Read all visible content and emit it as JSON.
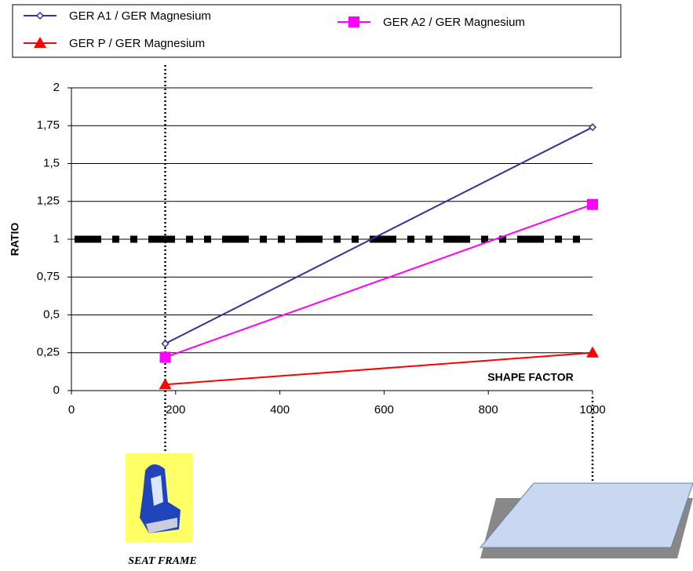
{
  "chart_data": {
    "type": "line",
    "x_label": "SHAPE FACTOR",
    "y_label": "RATIO",
    "caption": "SEAT FRAME",
    "xlim": [
      0,
      1000
    ],
    "xticks": [
      0,
      200,
      400,
      600,
      800,
      1000
    ],
    "ylim": [
      0,
      2
    ],
    "yticks": [
      0,
      {
        "value": 0.25,
        "label": "0,25"
      },
      {
        "value": 0.5,
        "label": "0,5"
      },
      {
        "value": 0.75,
        "label": "0,75"
      },
      1,
      {
        "value": 1.25,
        "label": "1,25"
      },
      {
        "value": 1.5,
        "label": "1,5"
      },
      {
        "value": 1.75,
        "label": "1,75"
      },
      2
    ],
    "grid": true,
    "reference_line": 1,
    "vertical_markers": [
      180,
      1000
    ],
    "series": [
      {
        "name": "GER A1 / GER Magnesium",
        "color": "#333399",
        "marker": "diamond",
        "x": [
          180,
          1000
        ],
        "values": [
          0.31,
          1.74
        ]
      },
      {
        "name": "GER A2 / GER Magnesium",
        "color": "#ff00ff",
        "marker": "square",
        "x": [
          180,
          1000
        ],
        "values": [
          0.22,
          1.23
        ]
      },
      {
        "name": "GER P / GER Magnesium",
        "color": "#ff0000",
        "marker": "triangle",
        "x": [
          180,
          1000
        ],
        "values": [
          0.04,
          0.25
        ]
      }
    ]
  }
}
